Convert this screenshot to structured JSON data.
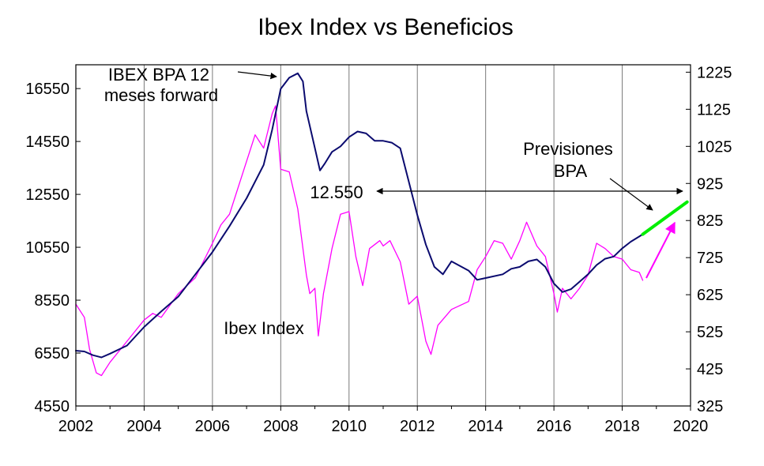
{
  "chart_data": {
    "type": "line",
    "title": "Ibex Index vs Beneficios",
    "xlabel": "",
    "xlim": [
      2002,
      2020
    ],
    "x_ticks": [
      "2002",
      "2004",
      "2006",
      "2008",
      "2010",
      "2012",
      "2014",
      "2016",
      "2018",
      "2020"
    ],
    "y_left": {
      "ylabel": "",
      "ylim": [
        4550,
        17450
      ],
      "ticks": [
        "4550",
        "6550",
        "8550",
        "10550",
        "12550",
        "14550",
        "16550"
      ]
    },
    "y_right": {
      "ylabel": "",
      "ylim": [
        325,
        1245
      ],
      "ticks": [
        "325",
        "425",
        "525",
        "625",
        "725",
        "825",
        "925",
        "1025",
        "1125",
        "1225"
      ]
    },
    "grid": {
      "vertical": true,
      "horizontal": false
    },
    "legend": "none",
    "series": [
      {
        "name": "Ibex Index",
        "axis": "left",
        "color": "#ff00ff",
        "points": [
          [
            2002.0,
            8400
          ],
          [
            2002.25,
            7900
          ],
          [
            2002.4,
            6700
          ],
          [
            2002.6,
            5800
          ],
          [
            2002.75,
            5700
          ],
          [
            2003.0,
            6200
          ],
          [
            2003.5,
            7000
          ],
          [
            2004.0,
            7800
          ],
          [
            2004.25,
            8050
          ],
          [
            2004.5,
            7900
          ],
          [
            2005.0,
            8800
          ],
          [
            2005.5,
            9400
          ],
          [
            2006.0,
            10700
          ],
          [
            2006.25,
            11400
          ],
          [
            2006.5,
            11800
          ],
          [
            2007.0,
            13800
          ],
          [
            2007.25,
            14800
          ],
          [
            2007.5,
            14300
          ],
          [
            2007.75,
            15600
          ],
          [
            2007.85,
            15900
          ],
          [
            2008.0,
            13500
          ],
          [
            2008.25,
            13400
          ],
          [
            2008.5,
            12000
          ],
          [
            2008.75,
            9500
          ],
          [
            2008.85,
            8800
          ],
          [
            2009.0,
            9000
          ],
          [
            2009.1,
            7200
          ],
          [
            2009.25,
            8800
          ],
          [
            2009.5,
            10500
          ],
          [
            2009.75,
            11800
          ],
          [
            2010.0,
            11900
          ],
          [
            2010.2,
            10200
          ],
          [
            2010.4,
            9100
          ],
          [
            2010.6,
            10500
          ],
          [
            2010.9,
            10800
          ],
          [
            2011.0,
            10600
          ],
          [
            2011.2,
            10800
          ],
          [
            2011.5,
            10000
          ],
          [
            2011.75,
            8400
          ],
          [
            2012.0,
            8700
          ],
          [
            2012.25,
            7000
          ],
          [
            2012.4,
            6500
          ],
          [
            2012.6,
            7600
          ],
          [
            2013.0,
            8200
          ],
          [
            2013.5,
            8500
          ],
          [
            2013.75,
            9700
          ],
          [
            2014.0,
            10200
          ],
          [
            2014.25,
            10800
          ],
          [
            2014.5,
            10700
          ],
          [
            2014.75,
            10100
          ],
          [
            2015.0,
            10800
          ],
          [
            2015.2,
            11500
          ],
          [
            2015.5,
            10600
          ],
          [
            2015.75,
            10200
          ],
          [
            2016.0,
            8800
          ],
          [
            2016.1,
            8100
          ],
          [
            2016.25,
            9000
          ],
          [
            2016.5,
            8600
          ],
          [
            2016.75,
            9000
          ],
          [
            2017.0,
            9500
          ],
          [
            2017.25,
            10700
          ],
          [
            2017.5,
            10500
          ],
          [
            2017.75,
            10200
          ],
          [
            2018.0,
            10100
          ],
          [
            2018.25,
            9700
          ],
          [
            2018.5,
            9600
          ],
          [
            2018.6,
            9300
          ]
        ]
      },
      {
        "name": "IBEX BPA 12 meses forward",
        "axis": "right",
        "color": "#0b0b6f",
        "points": [
          [
            2002.0,
            474
          ],
          [
            2002.25,
            472
          ],
          [
            2002.5,
            462
          ],
          [
            2002.75,
            456
          ],
          [
            2003.0,
            466
          ],
          [
            2003.5,
            488
          ],
          [
            2004.0,
            538
          ],
          [
            2004.5,
            580
          ],
          [
            2005.0,
            620
          ],
          [
            2005.5,
            680
          ],
          [
            2006.0,
            740
          ],
          [
            2006.5,
            810
          ],
          [
            2007.0,
            885
          ],
          [
            2007.5,
            975
          ],
          [
            2007.75,
            1070
          ],
          [
            2008.0,
            1180
          ],
          [
            2008.25,
            1210
          ],
          [
            2008.5,
            1222
          ],
          [
            2008.65,
            1200
          ],
          [
            2008.75,
            1120
          ],
          [
            2009.0,
            1020
          ],
          [
            2009.15,
            960
          ],
          [
            2009.3,
            980
          ],
          [
            2009.5,
            1010
          ],
          [
            2009.75,
            1025
          ],
          [
            2010.0,
            1050
          ],
          [
            2010.25,
            1065
          ],
          [
            2010.5,
            1060
          ],
          [
            2010.75,
            1040
          ],
          [
            2011.0,
            1040
          ],
          [
            2011.25,
            1035
          ],
          [
            2011.5,
            1020
          ],
          [
            2011.75,
            930
          ],
          [
            2012.0,
            840
          ],
          [
            2012.25,
            760
          ],
          [
            2012.5,
            700
          ],
          [
            2012.75,
            680
          ],
          [
            2013.0,
            715
          ],
          [
            2013.5,
            690
          ],
          [
            2013.75,
            665
          ],
          [
            2014.0,
            670
          ],
          [
            2014.5,
            680
          ],
          [
            2014.75,
            695
          ],
          [
            2015.0,
            700
          ],
          [
            2015.25,
            715
          ],
          [
            2015.5,
            720
          ],
          [
            2015.75,
            700
          ],
          [
            2016.0,
            655
          ],
          [
            2016.25,
            632
          ],
          [
            2016.5,
            640
          ],
          [
            2016.75,
            660
          ],
          [
            2017.0,
            680
          ],
          [
            2017.25,
            705
          ],
          [
            2017.5,
            722
          ],
          [
            2017.75,
            728
          ],
          [
            2018.0,
            750
          ],
          [
            2018.25,
            768
          ],
          [
            2018.5,
            782
          ],
          [
            2018.6,
            788
          ]
        ]
      },
      {
        "name": "Previsiones BPA",
        "axis": "right",
        "color": "#00ee00",
        "points": [
          [
            2018.6,
            788
          ],
          [
            2019.9,
            875
          ]
        ]
      }
    ],
    "annotations": [
      {
        "name": "bpa-label",
        "lines": [
          "IBEX BPA 12",
          "meses forward"
        ]
      },
      {
        "name": "ibex-label",
        "lines": [
          "Ibex Index"
        ]
      },
      {
        "name": "previsiones-label",
        "lines": [
          "Previsiones",
          "BPA"
        ]
      },
      {
        "name": "level-label",
        "lines": [
          "12.550"
        ],
        "level": 12550
      }
    ],
    "colors": {
      "ibex": "#ff00ff",
      "bpa": "#0b0b6f",
      "forecast": "#00ee00",
      "grid": "#7a7a7a",
      "axis": "#000000"
    }
  }
}
